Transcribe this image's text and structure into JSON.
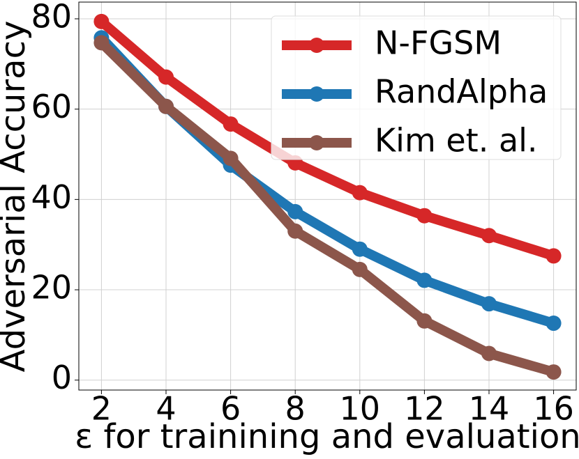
{
  "chart_data": {
    "type": "line",
    "x_label": "ε for trainining and evaluation",
    "y_label": "Adversarial Accuracy",
    "x": [
      2,
      4,
      6,
      8,
      10,
      12,
      14,
      16
    ],
    "series": [
      {
        "name": "N-FGSM",
        "color": "#d62728",
        "values": [
          79.4,
          67.1,
          56.7,
          48.1,
          41.5,
          36.4,
          32.0,
          27.5
        ]
      },
      {
        "name": "RandAlpha",
        "color": "#1f77b4",
        "values": [
          75.8,
          60.6,
          47.6,
          37.3,
          29.0,
          22.1,
          16.9,
          12.6
        ]
      },
      {
        "name": "Kim et. al.",
        "color": "#8c564b",
        "values": [
          74.7,
          60.6,
          49.1,
          33.0,
          24.5,
          13.1,
          5.9,
          1.8
        ]
      }
    ],
    "xlim": [
      1.3,
      16.7
    ],
    "ylim": [
      -2.2,
      83.7
    ],
    "xticks": [
      2,
      4,
      6,
      8,
      10,
      12,
      14,
      16
    ],
    "yticks": [
      0,
      20,
      40,
      60,
      80
    ],
    "grid": true,
    "legend": "upper right"
  }
}
